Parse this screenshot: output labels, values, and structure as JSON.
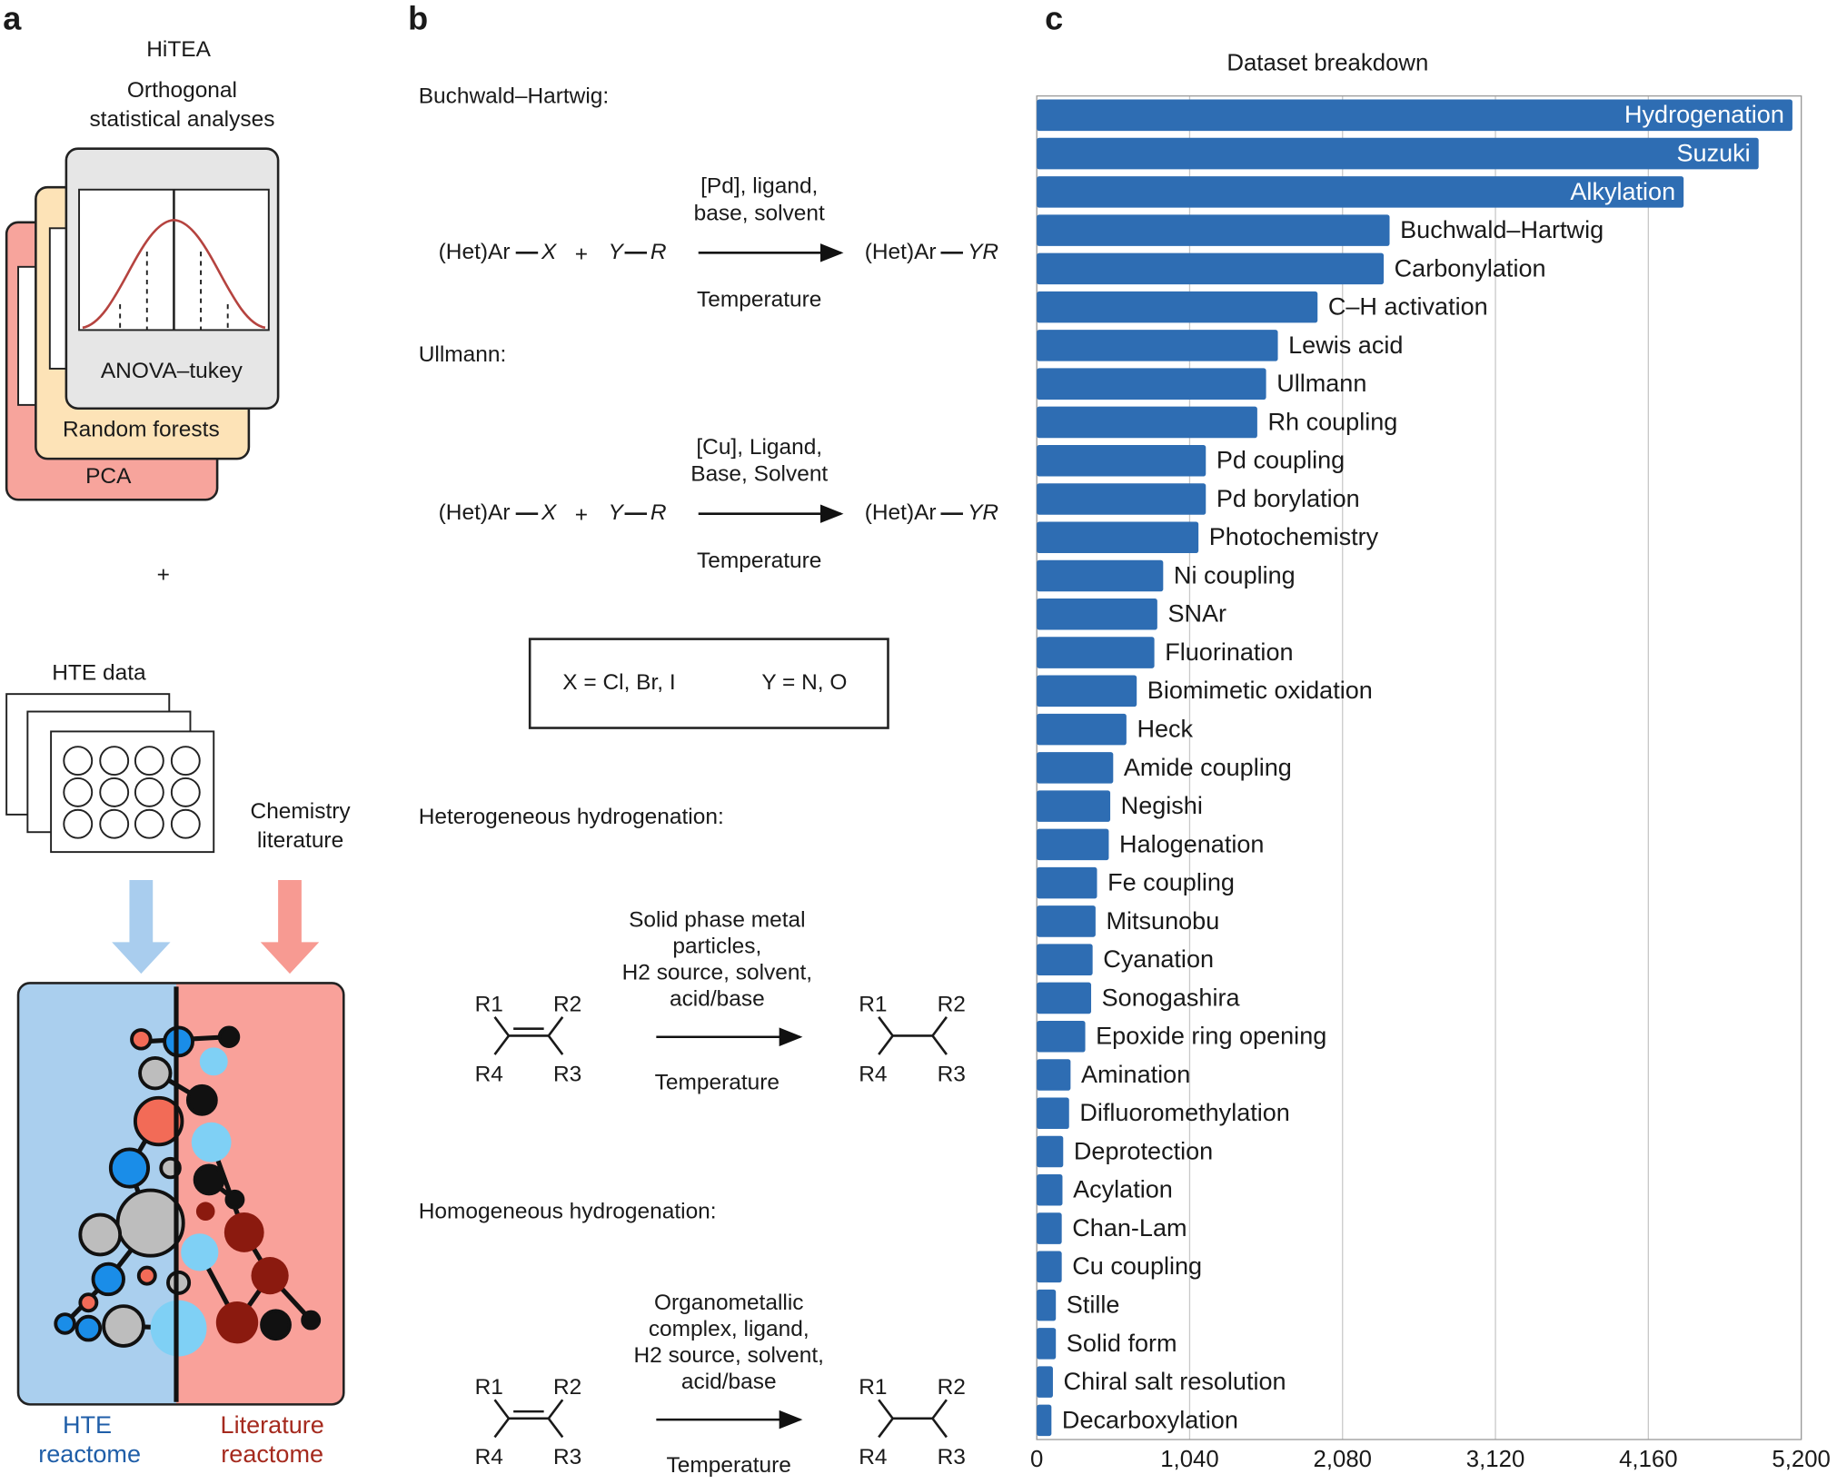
{
  "panel_labels": [
    "a",
    "b",
    "c"
  ],
  "panel_a": {
    "title": "HiTEA",
    "subtitle": [
      "Orthogonal",
      "statistical analyses"
    ],
    "cards": [
      "ANOVA–tukey",
      "Random forests",
      "PCA"
    ],
    "plus": "+",
    "hte": "HTE data",
    "literature": [
      "Chemistry",
      "literature"
    ],
    "reactome_hte": [
      "HTE",
      "reactome"
    ],
    "reactome_lit": [
      "Literature",
      "reactome"
    ]
  },
  "panel_b": {
    "reactions": [
      {
        "name": "Buchwald–Hartwig:",
        "reactant1": [
          "(Het)Ar",
          "X"
        ],
        "plus": "+",
        "reactant2": [
          "Y",
          "R"
        ],
        "conditions": [
          "[Pd], ligand,",
          "base, solvent"
        ],
        "temperature": "Temperature",
        "product": [
          "(Het)Ar",
          "YR"
        ]
      },
      {
        "name": "Ullmann:",
        "reactant1": [
          "(Het)Ar",
          "X"
        ],
        "plus": "+",
        "reactant2": [
          "Y",
          "R"
        ],
        "conditions": [
          "[Cu], Ligand,",
          "Base, Solvent"
        ],
        "temperature": "Temperature",
        "product": [
          "(Het)Ar",
          "YR"
        ]
      }
    ],
    "definitions": [
      "X = Cl, Br, I",
      "Y = N, O"
    ],
    "hydrogenations": [
      {
        "name": "Heterogeneous hydrogenation:",
        "conditions": [
          "Solid phase metal",
          "particles,",
          "H2 source, solvent,",
          "acid/base"
        ],
        "temperature": "Temperature",
        "substituents": [
          "R1",
          "R2",
          "R4",
          "R3"
        ]
      },
      {
        "name": "Homogeneous hydrogenation:",
        "conditions": [
          "Organometallic",
          "complex, ligand,",
          "H2 source, solvent,",
          "acid/base"
        ],
        "temperature": "Temperature",
        "substituents": [
          "R1",
          "R2",
          "R4",
          "R3"
        ]
      }
    ]
  },
  "chart_data": {
    "type": "barh",
    "title": "Dataset breakdown",
    "color": "#2e6db3",
    "grid": true,
    "categories": [
      "Hydrogenation",
      "Suzuki",
      "Alkylation",
      "Buchwald–Hartwig",
      "Carbonylation",
      "C–H activation",
      "Lewis acid",
      "Ullmann",
      "Rh coupling",
      "Pd coupling",
      "Pd borylation",
      "Photochemistry",
      "Ni coupling",
      "SNAr",
      "Fluorination",
      "Biomimetic oxidation",
      "Heck",
      "Amide coupling",
      "Negishi",
      "Halogenation",
      "Fe coupling",
      "Mitsunobu",
      "Cyanation",
      "Sonogashira",
      "Epoxide ring opening",
      "Amination",
      "Difluoromethylation",
      "Deprotection",
      "Acylation",
      "Chan-Lam",
      "Cu coupling",
      "Stille",
      "Solid form",
      "Chiral salt resolution",
      "Decarboxylation"
    ],
    "values": [
      5140,
      4910,
      4400,
      2400,
      2360,
      1910,
      1640,
      1560,
      1500,
      1150,
      1150,
      1100,
      860,
      820,
      800,
      680,
      610,
      520,
      500,
      490,
      410,
      400,
      380,
      370,
      330,
      230,
      220,
      180,
      175,
      170,
      170,
      130,
      130,
      110,
      100
    ],
    "xlim": [
      0,
      5200
    ],
    "xticks": [
      0,
      {
        "value": 1040,
        "label": "1,040"
      },
      {
        "value": 2080,
        "label": "2,080"
      },
      {
        "value": 3120,
        "label": "3,120"
      },
      {
        "value": 4160,
        "label": "4,160"
      },
      {
        "value": 5200,
        "label": "5,200"
      }
    ]
  }
}
